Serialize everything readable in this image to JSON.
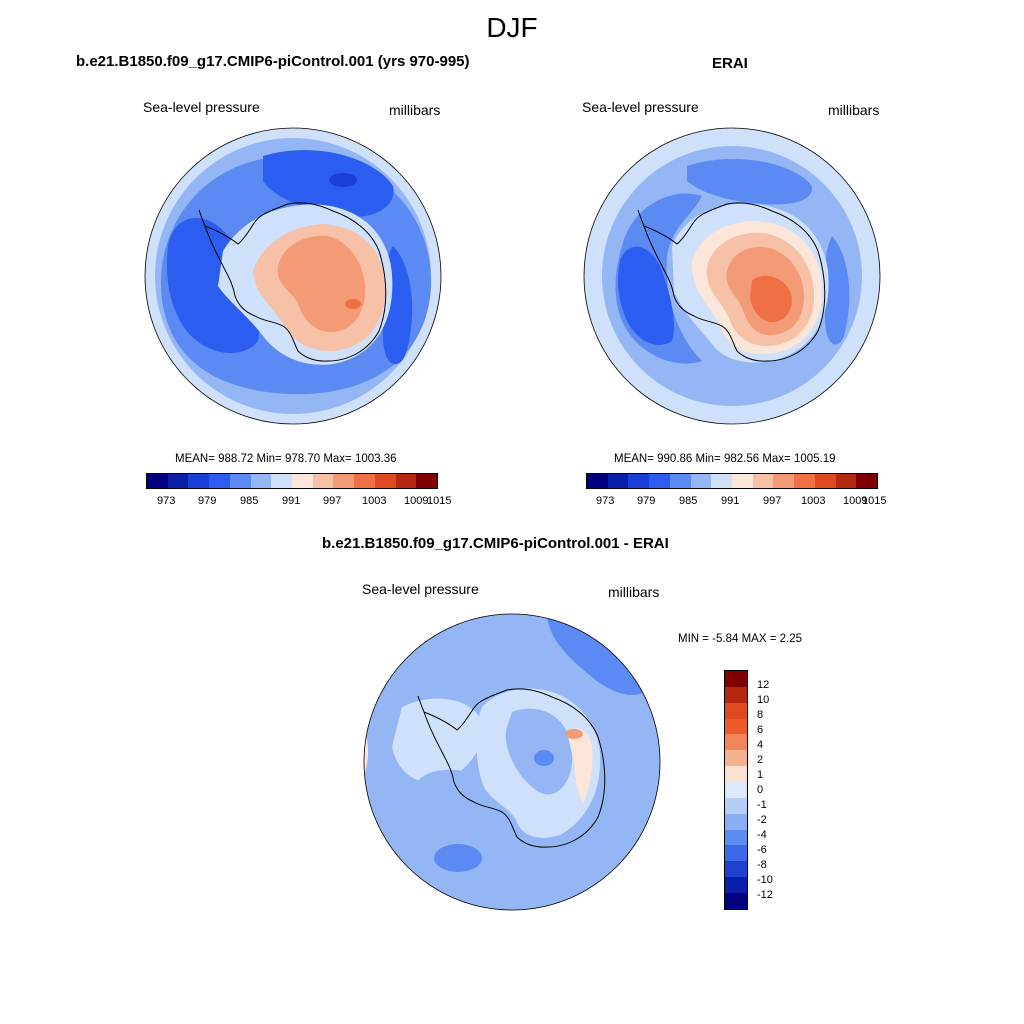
{
  "season": "DJF",
  "panels": [
    {
      "title": "b.e21.B1850.f09_g17.CMIP6-piControl.001 (yrs 970-995)",
      "left_label": "Sea-level pressure",
      "right_label": "millibars",
      "stats": "MEAN= 988.72  Min= 978.70  Max= 1003.36",
      "colorbar_ticks": [
        "973",
        "979",
        "985",
        "991",
        "997",
        "1003",
        "1009",
        "1015"
      ]
    },
    {
      "title": "ERAI",
      "left_label": "Sea-level pressure",
      "right_label": "millibars",
      "stats": "MEAN= 990.86  Min= 982.56  Max= 1005.19",
      "colorbar_ticks": [
        "973",
        "979",
        "985",
        "991",
        "997",
        "1003",
        "1009",
        "1015"
      ]
    },
    {
      "title": "b.e21.B1850.f09_g17.CMIP6-piControl.001 - ERAI",
      "left_label": "Sea-level pressure",
      "right_label": "millibars",
      "stats": "MIN =  -5.84 MAX =   2.25",
      "colorbar_ticks": [
        "12",
        "10",
        "8",
        "6",
        "4",
        "2",
        "1",
        "0",
        "-1",
        "-2",
        "-4",
        "-6",
        "-8",
        "-10",
        "-12"
      ]
    }
  ],
  "colors": {
    "abs_scale": [
      "#00007f",
      "#0a1fa8",
      "#1a3fd6",
      "#2b5ef0",
      "#5a8af2",
      "#95b6f5",
      "#cfe0fa",
      "#fbe6d9",
      "#f6c1a6",
      "#f39a76",
      "#ef7044",
      "#e04a22",
      "#b4280f",
      "#7f0000"
    ],
    "diff_scale": [
      "#7f0000",
      "#b4280f",
      "#e04a22",
      "#ef5a2a",
      "#f3855a",
      "#f6b18e",
      "#fbe3d3",
      "#deeafb",
      "#b6cdf7",
      "#8aaef3",
      "#5d8df0",
      "#3a6ae8",
      "#2040d0",
      "#0a1fa8",
      "#00007f"
    ],
    "ocean_deep": "#2b5ef0",
    "ocean_mid": "#5a8af2",
    "ocean_light": "#95b6f5",
    "pale_blue": "#cfe0fa",
    "pale_orange": "#fbe6d9",
    "orange_light": "#f6c1a6",
    "orange_mid": "#f39a76",
    "orange_strong": "#ef7044",
    "diff_base": "#95b6f5",
    "diff_mid": "#5a8af2",
    "diff_pale": "#cfe0fa",
    "diff_warm": "#f6c1a6",
    "diff_warm2": "#f39a76"
  }
}
